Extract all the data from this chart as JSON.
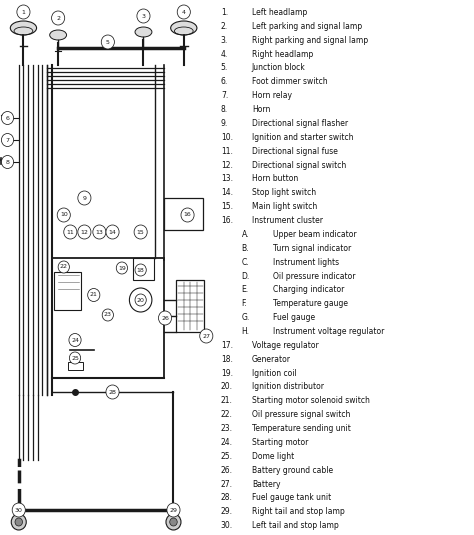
{
  "bg_color": "#ffffff",
  "lc": "#1a1a1a",
  "legend_items": [
    [
      "1.",
      "Left headlamp"
    ],
    [
      "2.",
      "Left parking and signal lamp"
    ],
    [
      "3.",
      "Right parking and signal lamp"
    ],
    [
      "4.",
      "Right headlamp"
    ],
    [
      "5.",
      "Junction block"
    ],
    [
      "6.",
      "Foot dimmer switch"
    ],
    [
      "7.",
      "Horn relay"
    ],
    [
      "8.",
      "Horn"
    ],
    [
      "9.",
      "Directional signal flasher"
    ],
    [
      "10.",
      "Ignition and starter switch"
    ],
    [
      "11.",
      "Directional signal fuse"
    ],
    [
      "12.",
      "Directional signal switch"
    ],
    [
      "13.",
      "Horn button"
    ],
    [
      "14.",
      "Stop light switch"
    ],
    [
      "15.",
      "Main light switch"
    ],
    [
      "16.",
      "Instrument cluster"
    ],
    [
      "A.",
      "Upper beam indicator"
    ],
    [
      "B.",
      "Turn signal indicator"
    ],
    [
      "C.",
      "Instrument lights"
    ],
    [
      "D.",
      "Oil pressure indicator"
    ],
    [
      "E.",
      "Charging indicator"
    ],
    [
      "F.",
      "Temperature gauge"
    ],
    [
      "G.",
      "Fuel gauge"
    ],
    [
      "H.",
      "Instrument voltage regulator"
    ],
    [
      "17.",
      "Voltage regulator"
    ],
    [
      "18.",
      "Generator"
    ],
    [
      "19.",
      "Ignition coil"
    ],
    [
      "20.",
      "Ignition distributor"
    ],
    [
      "21.",
      "Starting motor solenoid switch"
    ],
    [
      "22.",
      "Oil pressure signal switch"
    ],
    [
      "23.",
      "Temperature sending unit"
    ],
    [
      "24.",
      "Starting motor"
    ],
    [
      "25.",
      "Dome light"
    ],
    [
      "26.",
      "Battery ground cable"
    ],
    [
      "27.",
      "Battery"
    ],
    [
      "28.",
      "Fuel gauge tank unit"
    ],
    [
      "29.",
      "Right tail and stop lamp"
    ],
    [
      "30.",
      "Left tail and stop lamp"
    ]
  ],
  "indented": [
    16,
    17,
    18,
    19,
    20,
    21,
    22,
    23
  ],
  "diagram": {
    "xlim": [
      0,
      230
    ],
    "ylim": [
      0,
      535
    ]
  }
}
